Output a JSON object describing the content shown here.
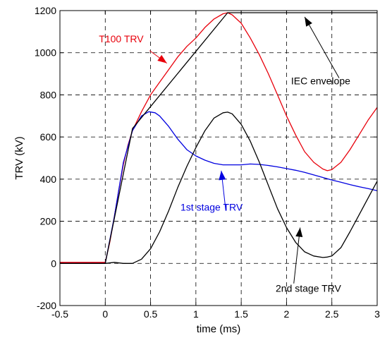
{
  "chart_data": {
    "type": "line",
    "title": "",
    "xlabel": "time (ms)",
    "ylabel": "TRV (kV)",
    "xlim": [
      -0.5,
      3
    ],
    "ylim": [
      -200,
      1200
    ],
    "xticks": [
      -0.5,
      0,
      0.5,
      1,
      1.5,
      2,
      2.5,
      3
    ],
    "yticks": [
      -200,
      0,
      200,
      400,
      600,
      800,
      1000,
      1200
    ],
    "xtick_labels": [
      "-0.5",
      "0",
      "0.5",
      "1",
      "1.5",
      "2",
      "2.5",
      "3"
    ],
    "ytick_labels": [
      "-200",
      "0",
      "200",
      "400",
      "600",
      "800",
      "1000",
      "1200"
    ],
    "grid": true,
    "series": [
      {
        "name": "T100 TRV",
        "color": "#e8000b",
        "x": [
          -0.5,
          0,
          0.05,
          0.1,
          0.15,
          0.2,
          0.25,
          0.3,
          0.4,
          0.5,
          0.6,
          0.7,
          0.8,
          0.9,
          1.0,
          1.1,
          1.2,
          1.3,
          1.35,
          1.4,
          1.5,
          1.6,
          1.7,
          1.8,
          1.9,
          2.0,
          2.1,
          2.2,
          2.3,
          2.4,
          2.45,
          2.5,
          2.6,
          2.7,
          2.8,
          2.9,
          3.0
        ],
        "y": [
          5,
          5,
          100,
          220,
          350,
          470,
          560,
          630,
          720,
          800,
          860,
          920,
          980,
          1030,
          1070,
          1120,
          1160,
          1185,
          1190,
          1180,
          1140,
          1070,
          990,
          900,
          800,
          700,
          610,
          530,
          480,
          448,
          440,
          445,
          480,
          540,
          610,
          680,
          740
        ]
      },
      {
        "name": "1st stage TRV",
        "color": "#0000e0",
        "x": [
          -0.5,
          0,
          0.1,
          0.2,
          0.3,
          0.4,
          0.48,
          0.55,
          0.6,
          0.7,
          0.8,
          0.9,
          1.0,
          1.1,
          1.2,
          1.3,
          1.4,
          1.5,
          1.6,
          1.7,
          1.8,
          1.9,
          2.0,
          2.1,
          2.2,
          2.3,
          2.4,
          2.5,
          2.6,
          2.7,
          2.8,
          2.9,
          3.0
        ],
        "y": [
          0,
          0,
          220,
          480,
          630,
          700,
          720,
          715,
          700,
          650,
          590,
          540,
          510,
          490,
          475,
          468,
          468,
          468,
          472,
          470,
          465,
          458,
          450,
          442,
          432,
          420,
          408,
          396,
          385,
          374,
          364,
          355,
          345
        ]
      },
      {
        "name": "2nd stage TRV",
        "color": "#000000",
        "x": [
          -0.5,
          0,
          0.1,
          0.2,
          0.3,
          0.4,
          0.5,
          0.6,
          0.7,
          0.8,
          0.9,
          1.0,
          1.1,
          1.2,
          1.3,
          1.35,
          1.4,
          1.5,
          1.6,
          1.7,
          1.8,
          1.9,
          2.0,
          2.1,
          2.2,
          2.3,
          2.4,
          2.45,
          2.5,
          2.6,
          2.7,
          2.8,
          2.9,
          3.0
        ],
        "y": [
          0,
          0,
          5,
          0,
          0,
          20,
          70,
          150,
          250,
          360,
          460,
          550,
          630,
          690,
          715,
          718,
          710,
          660,
          580,
          480,
          370,
          260,
          170,
          100,
          55,
          35,
          28,
          30,
          35,
          75,
          150,
          230,
          310,
          390
        ]
      },
      {
        "name": "IEC envelope",
        "color": "#000000",
        "x": [
          0,
          0.3,
          1.35,
          3.0
        ],
        "y": [
          0,
          640,
          1190,
          1190
        ]
      }
    ],
    "annotations": [
      {
        "text": "T100 TRV",
        "color": "#e8000b",
        "anchor": "T100 TRV"
      },
      {
        "text": "IEC envelope",
        "color": "#000000",
        "anchor": "IEC envelope"
      },
      {
        "text": "1st stage TRV",
        "color": "#0000e0",
        "anchor": "1st stage TRV"
      },
      {
        "text": "2nd stage TRV",
        "color": "#000000",
        "anchor": "2nd stage TRV"
      }
    ]
  }
}
